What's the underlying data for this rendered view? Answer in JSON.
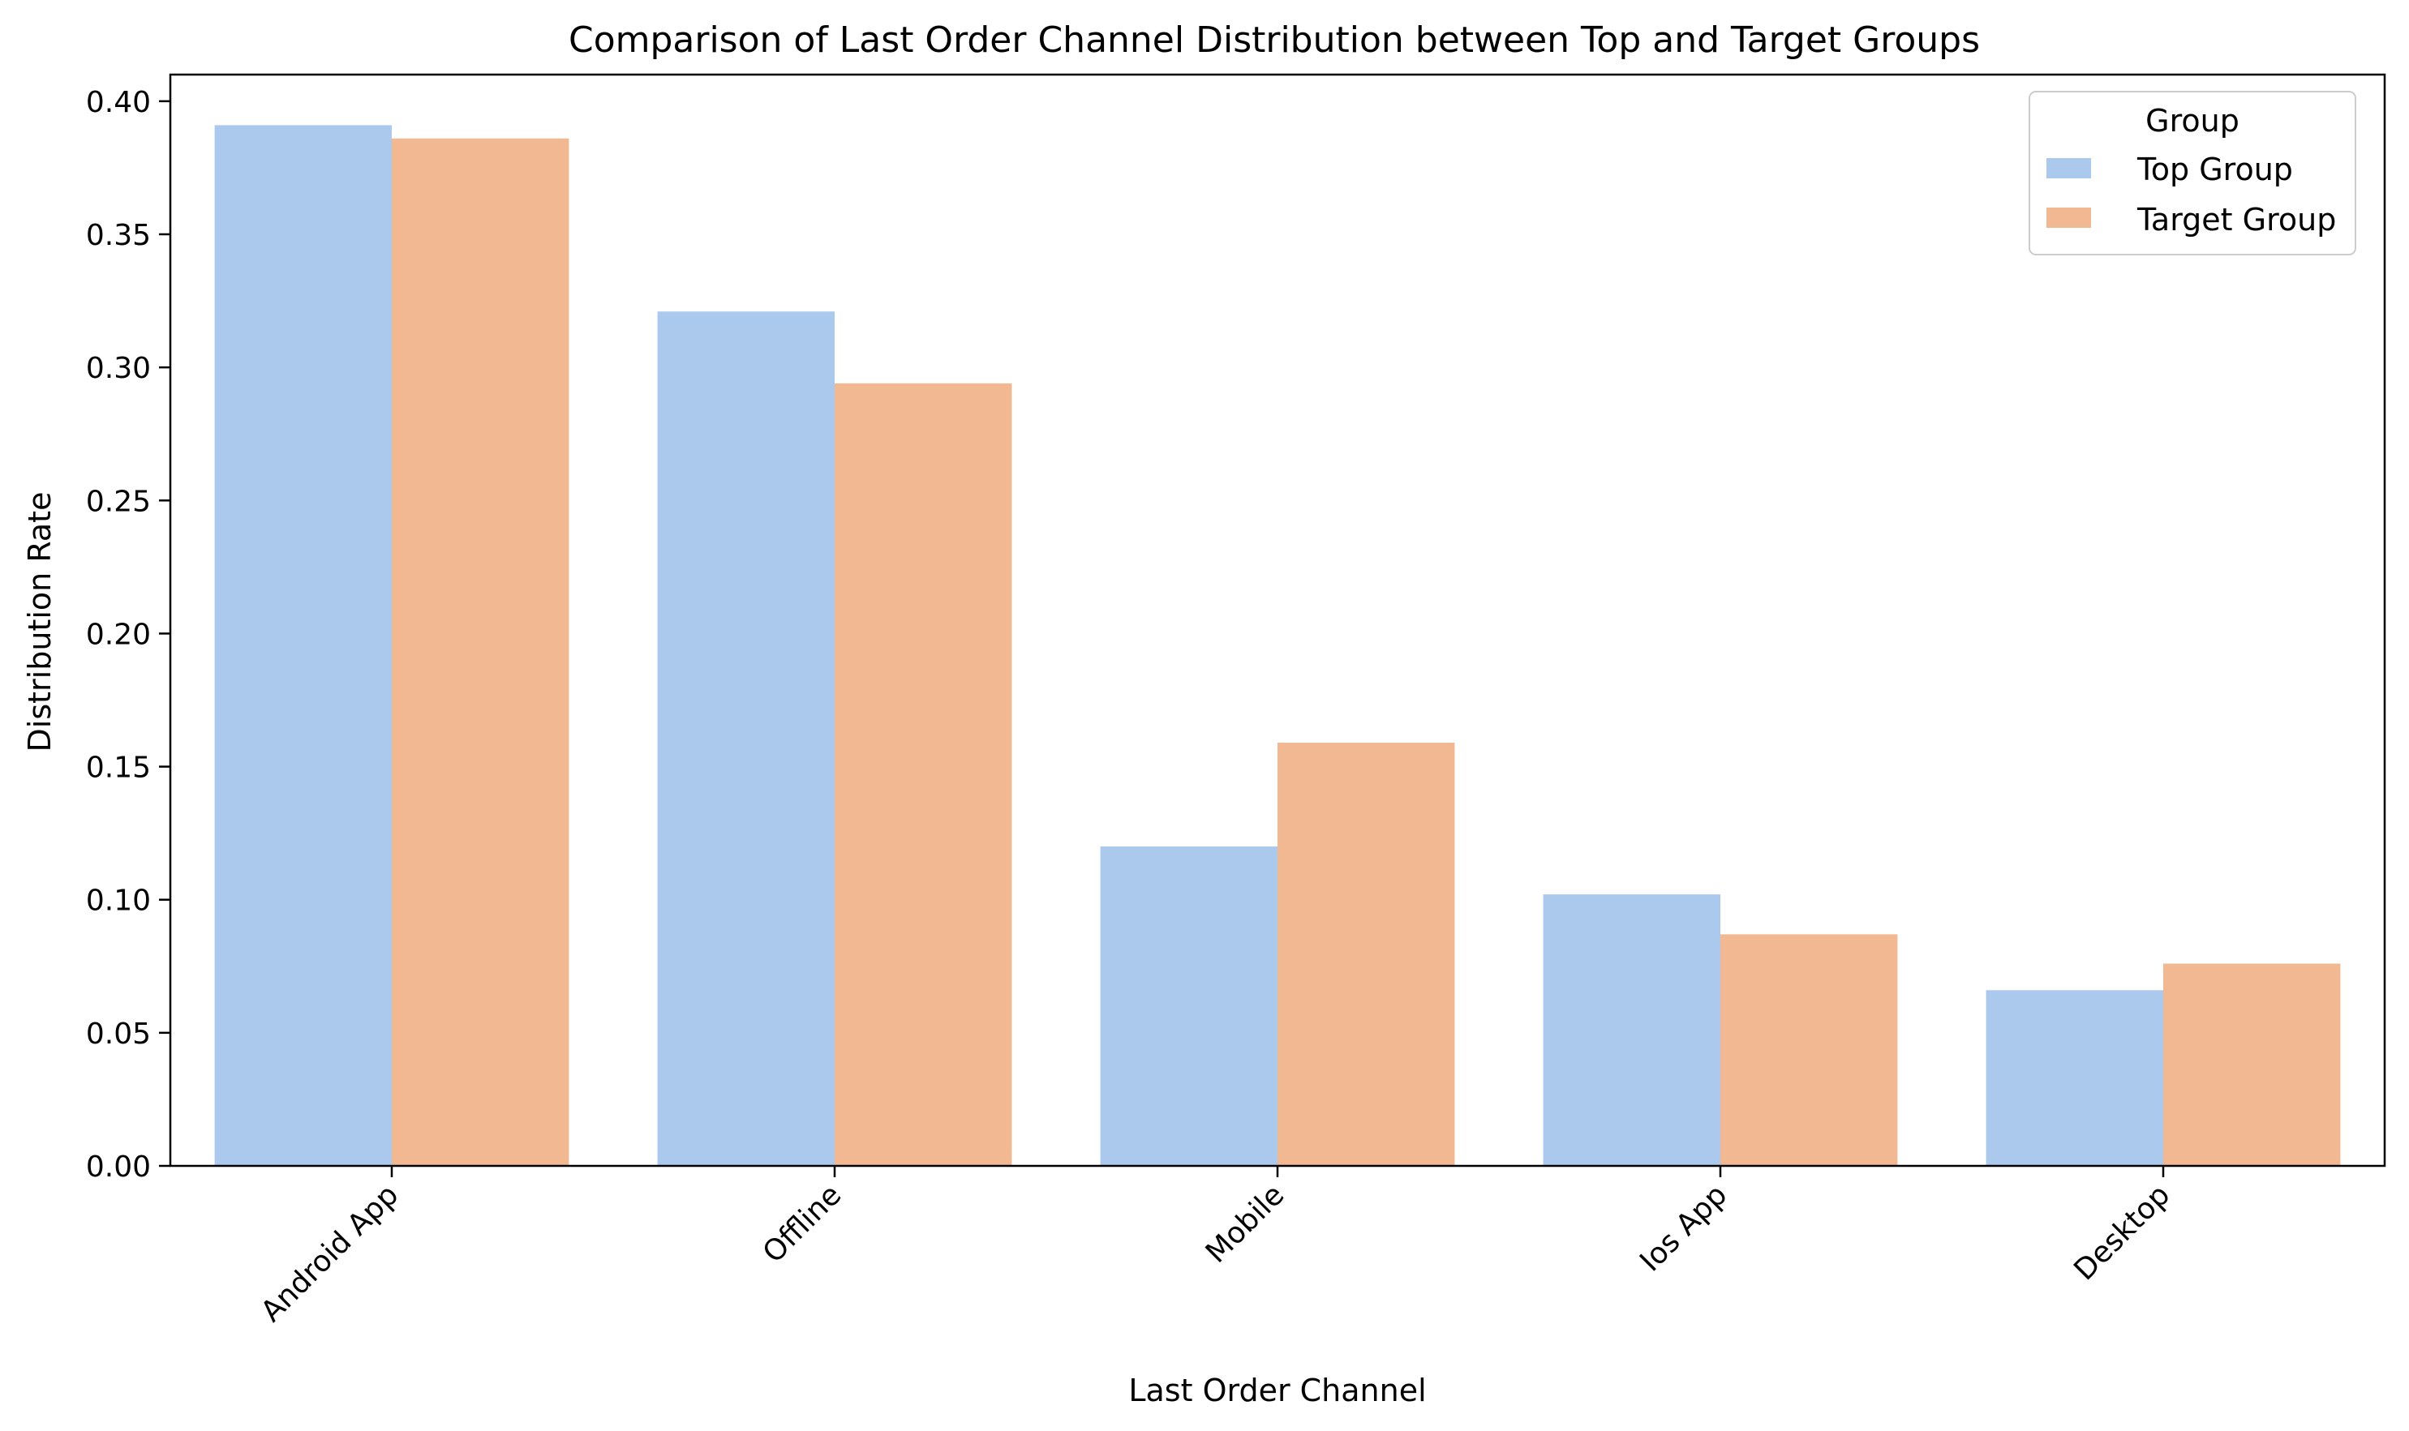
{
  "chart_data": {
    "type": "bar",
    "title": "Comparison of Last Order Channel Distribution between Top and Target Groups",
    "xlabel": "Last Order Channel",
    "ylabel": "Distribution Rate",
    "categories": [
      "Android App",
      "Offline",
      "Mobile",
      "Ios App",
      "Desktop"
    ],
    "series": [
      {
        "name": "Top Group",
        "color": "#abc9ed",
        "values": [
          0.391,
          0.321,
          0.12,
          0.102,
          0.066
        ]
      },
      {
        "name": "Target Group",
        "color": "#f1b892",
        "values": [
          0.386,
          0.294,
          0.159,
          0.087,
          0.076
        ]
      }
    ],
    "ylim": [
      0,
      0.41
    ],
    "yticks": [
      "0.00",
      "0.05",
      "0.10",
      "0.15",
      "0.20",
      "0.25",
      "0.30",
      "0.35",
      "0.40"
    ],
    "legend": {
      "title": "Group",
      "position": "top-right"
    },
    "grid": false
  }
}
